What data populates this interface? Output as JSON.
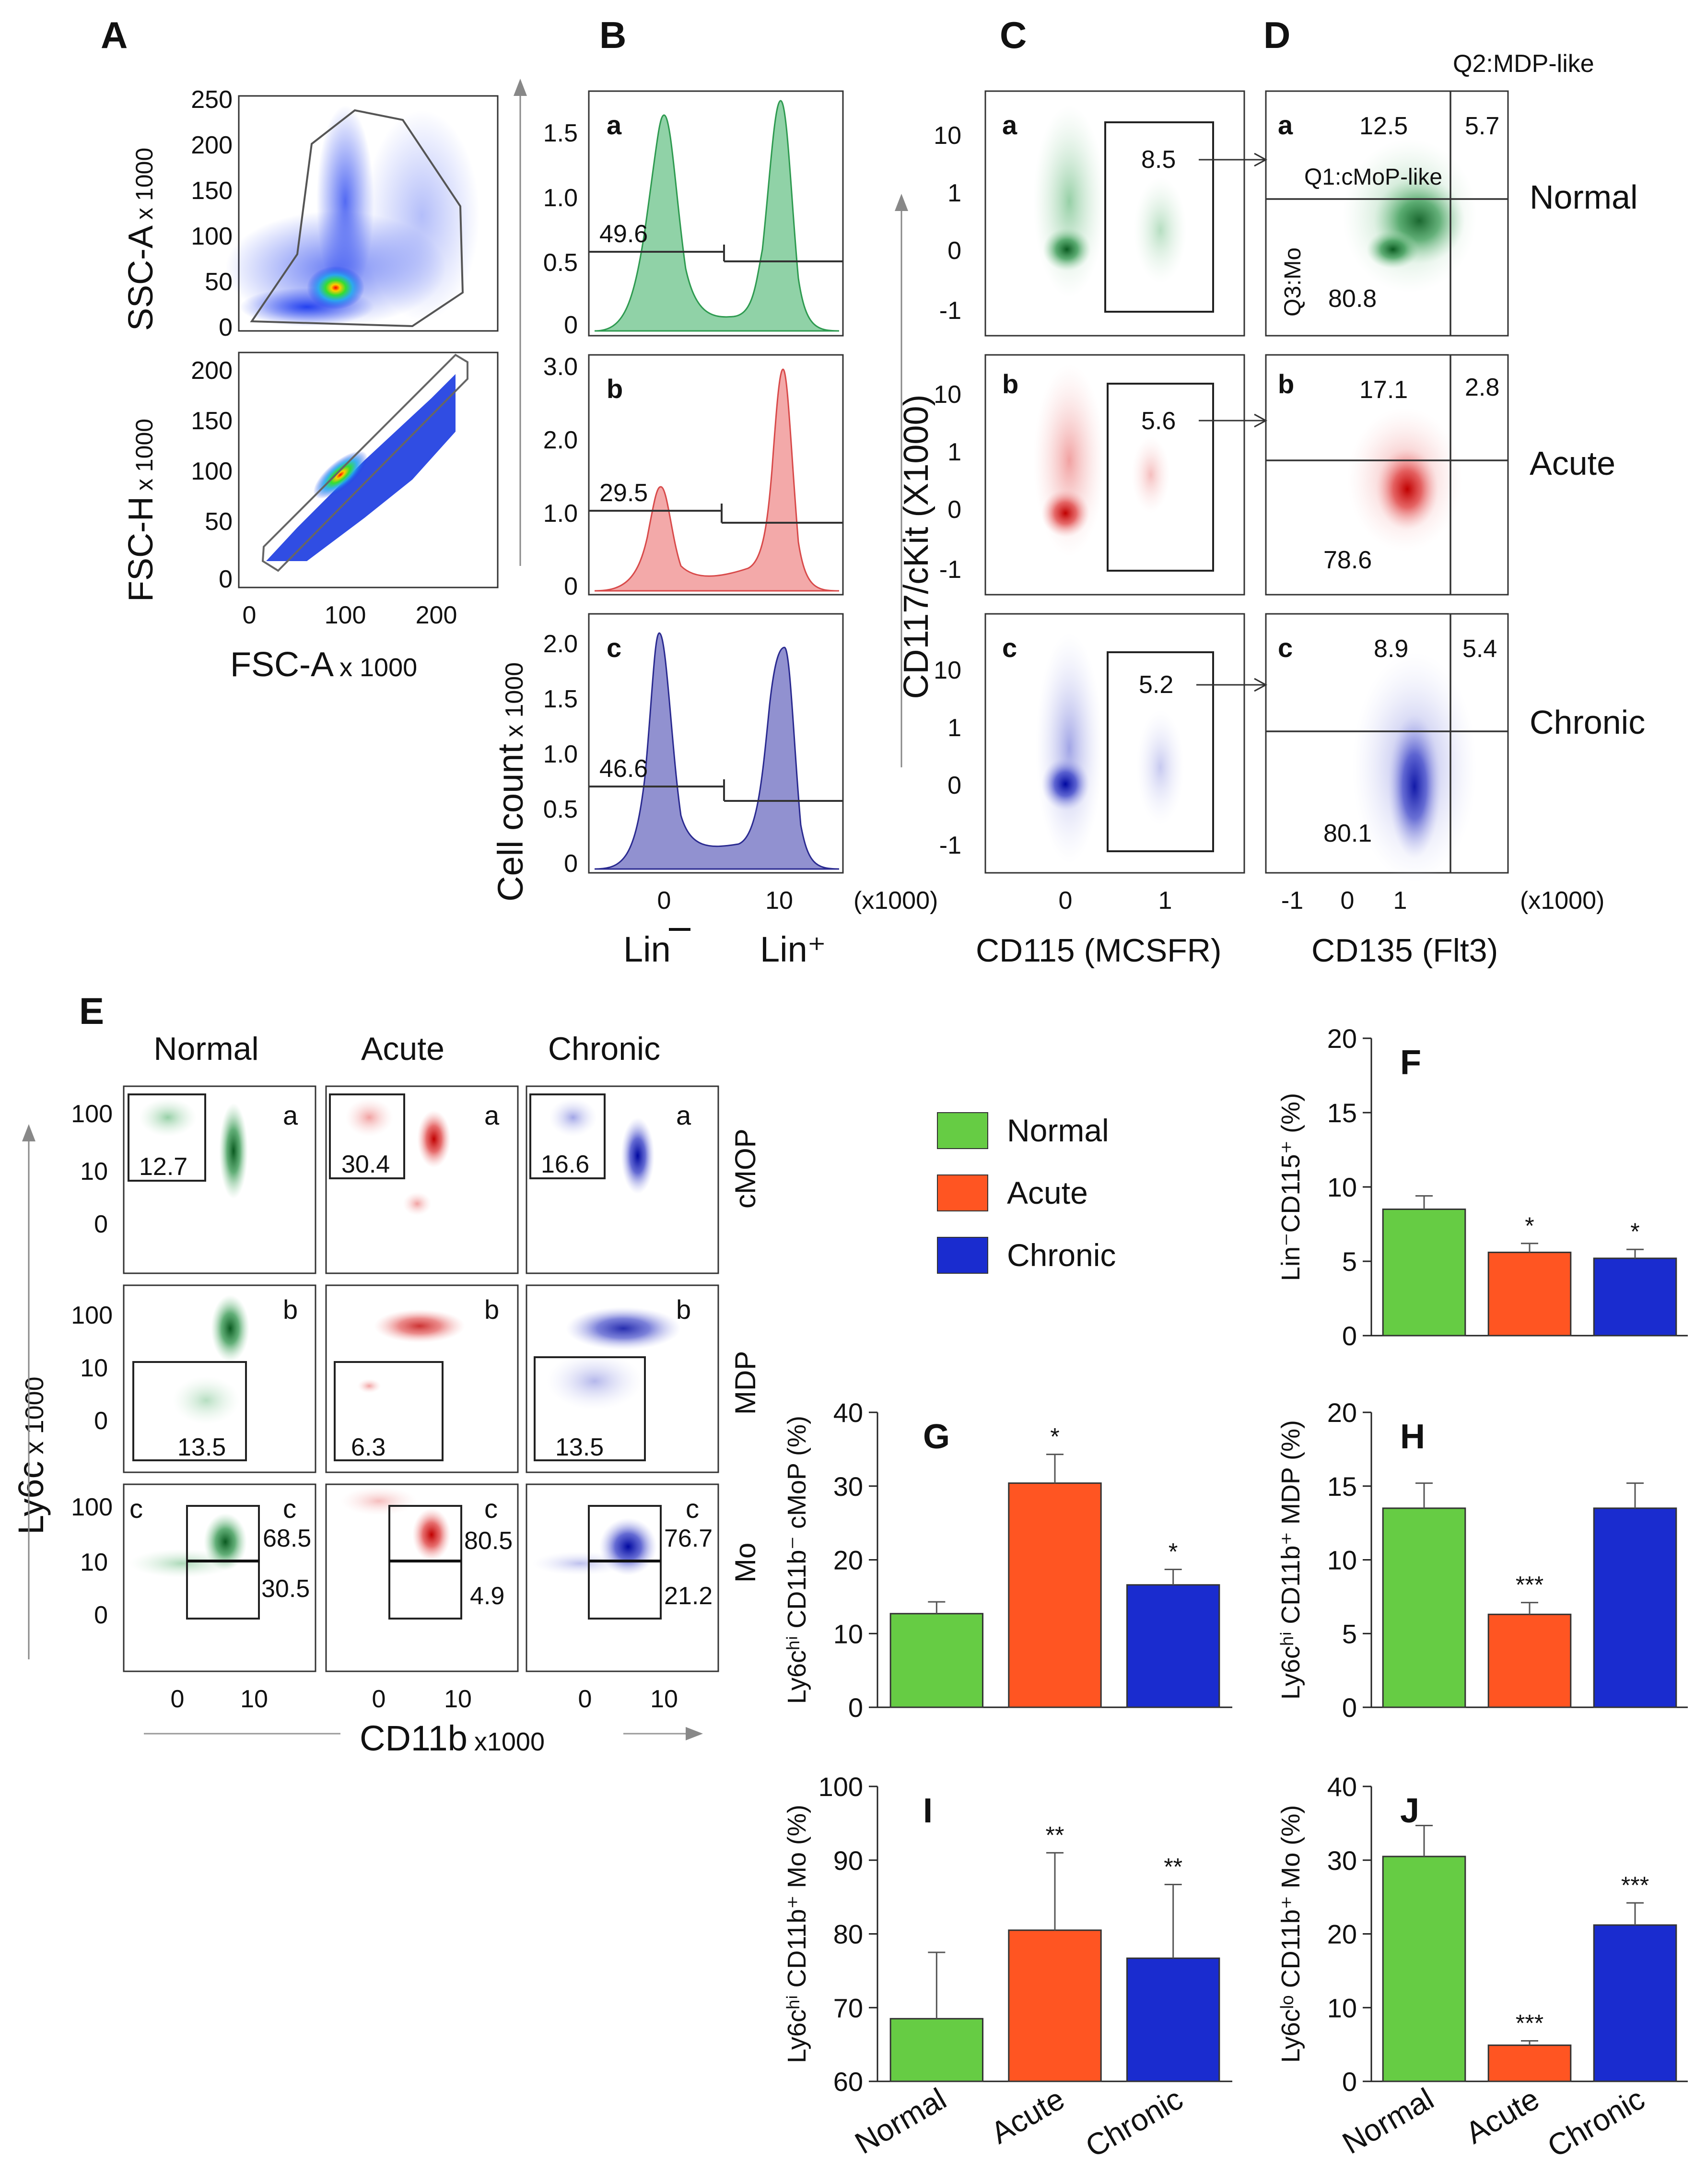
{
  "colors": {
    "normal": "#66cc44",
    "acute": "#ff5522",
    "chronic": "#1a2ccf",
    "normal_dark": "#1e7a32",
    "acute_dark": "#d81a1a",
    "chronic_dark": "#1020a8",
    "normal_hist": "#5fbf7a",
    "acute_hist": "#ef7a7a",
    "chronic_hist": "#7070c8"
  },
  "panel_letters": {
    "A": "A",
    "B": "B",
    "C": "C",
    "D": "D",
    "E": "E",
    "F": "F",
    "G": "G",
    "H": "H",
    "I": "I",
    "J": "J"
  },
  "panelA": {
    "top_y_ticks": [
      "250",
      "200",
      "150",
      "100",
      "50",
      "0"
    ],
    "bot_y_ticks": [
      "200",
      "150",
      "100",
      "50",
      "0"
    ],
    "x_ticks": [
      "0",
      "100",
      "200"
    ],
    "top_ylabel_main": "SSC-A",
    "top_ylabel_unit": "x 1000",
    "bot_ylabel_main": "FSC-H",
    "bot_ylabel_unit": "x 1000",
    "xlabel_main": "FSC-A",
    "xlabel_unit": "x 1000"
  },
  "panelB": {
    "rows": [
      {
        "sub": "a",
        "gate": "49.6",
        "ticks": [
          "1.5",
          "1.0",
          "0.5",
          "0"
        ]
      },
      {
        "sub": "b",
        "gate": "29.5",
        "ticks": [
          "3.0",
          "2.0",
          "1.0",
          "0"
        ]
      },
      {
        "sub": "c",
        "gate": "46.6",
        "ticks": [
          "2.0",
          "1.5",
          "1.0",
          "0.5",
          "0"
        ]
      }
    ],
    "x_ticks": [
      "0",
      "10"
    ],
    "x_unit": "(x1000)",
    "ylabel_main": "Cell count",
    "ylabel_unit": "x 1000",
    "lin_neg": "Lin",
    "lin_pos": "Lin⁺"
  },
  "panelC": {
    "rows": [
      {
        "sub": "a",
        "gate": "8.5",
        "ticks": [
          "10",
          "1",
          "0",
          "-1"
        ]
      },
      {
        "sub": "b",
        "gate": "5.6",
        "ticks": [
          "10",
          "1",
          "0",
          "-1"
        ]
      },
      {
        "sub": "c",
        "gate": "5.2",
        "ticks": [
          "10",
          "1",
          "0",
          "-1"
        ]
      }
    ],
    "x_ticks": [
      "0",
      "1"
    ],
    "xlabel": "CD115 (MCSFR)",
    "ylabel": "CD117/cKit (X1000)"
  },
  "panelD": {
    "header": "Q2:MDP-like",
    "q1": "Q1:cMoP-like",
    "q3": "Q3:Mo",
    "rows": [
      {
        "sub": "a",
        "tl": "12.5",
        "tr": "5.7",
        "bl": "80.8",
        "cond": "Normal"
      },
      {
        "sub": "b",
        "tl": "17.1",
        "tr": "2.8",
        "bl": "78.6",
        "cond": "Acute"
      },
      {
        "sub": "c",
        "tl": "8.9",
        "tr": "5.4",
        "bl": "80.1",
        "cond": "Chronic"
      }
    ],
    "x_ticks": [
      "-1",
      "0",
      "1"
    ],
    "x_unit": "(x1000)",
    "xlabel": "CD135 (Flt3)"
  },
  "panelE": {
    "col_heads": [
      "Normal",
      "Acute",
      "Chronic"
    ],
    "row_labels": [
      "cMOP",
      "MDP",
      "Mo"
    ],
    "subs": [
      "a",
      "b",
      "c"
    ],
    "y_ticks": [
      "100",
      "10",
      "0"
    ],
    "x_ticks": [
      "0",
      "10"
    ],
    "values": {
      "cmop": [
        "12.7",
        "30.4",
        "16.6"
      ],
      "mdp": [
        "13.5",
        "6.3",
        "13.5"
      ],
      "mo_hi": [
        "68.5",
        "80.5",
        "76.7"
      ],
      "mo_lo": [
        "30.5",
        "4.9",
        "21.2"
      ]
    },
    "ylabel_main": "Ly6c",
    "ylabel_unit": "x 1000",
    "xlabel_main": "CD11b",
    "xlabel_unit": "x1000"
  },
  "legend": [
    "Normal",
    "Acute",
    "Chronic"
  ],
  "chart_data": [
    {
      "id": "F",
      "type": "bar",
      "categories": [
        "Normal",
        "Acute",
        "Chronic"
      ],
      "values": [
        8.5,
        5.6,
        5.2
      ],
      "errors": [
        0.9,
        0.6,
        0.6
      ],
      "sig": [
        "",
        "*",
        "*"
      ],
      "ylim": [
        0,
        20
      ],
      "yticks": [
        "0",
        "5",
        "10",
        "15",
        "20"
      ],
      "ylabel": "Lin⁻CD115⁺ (%)",
      "show_x_labels": false
    },
    {
      "id": "G",
      "type": "bar",
      "categories": [
        "Normal",
        "Acute",
        "Chronic"
      ],
      "values": [
        12.7,
        30.4,
        16.6
      ],
      "errors": [
        1.6,
        3.9,
        2.1
      ],
      "sig": [
        "",
        "*",
        "*"
      ],
      "ylim": [
        0,
        40
      ],
      "yticks": [
        "0",
        "10",
        "20",
        "30",
        "40"
      ],
      "ylabel": "Ly6cʰⁱ CD11b⁻ cMoP (%)",
      "show_x_labels": false
    },
    {
      "id": "H",
      "type": "bar",
      "categories": [
        "Normal",
        "Acute",
        "Chronic"
      ],
      "values": [
        13.5,
        6.3,
        13.5
      ],
      "errors": [
        1.7,
        0.8,
        1.7
      ],
      "sig": [
        "",
        "***",
        ""
      ],
      "ylim": [
        0,
        20
      ],
      "yticks": [
        "0",
        "5",
        "10",
        "15",
        "20"
      ],
      "ylabel": "Ly6cʰⁱ CD11b⁺ MDP (%)",
      "show_x_labels": false
    },
    {
      "id": "I",
      "type": "bar",
      "categories": [
        "Normal",
        "Acute",
        "Chronic"
      ],
      "values": [
        68.5,
        80.5,
        76.7
      ],
      "errors": [
        9,
        10.5,
        10
      ],
      "sig": [
        "",
        "**",
        "**"
      ],
      "ylim": [
        60,
        100
      ],
      "yticks": [
        "60",
        "70",
        "80",
        "90",
        "100"
      ],
      "ylabel": "Ly6cʰⁱ CD11b⁺ Mo (%)",
      "show_x_labels": true
    },
    {
      "id": "J",
      "type": "bar",
      "categories": [
        "Normal",
        "Acute",
        "Chronic"
      ],
      "values": [
        30.5,
        4.9,
        21.2
      ],
      "errors": [
        4.2,
        0.6,
        3
      ],
      "sig": [
        "",
        "***",
        "***"
      ],
      "ylim": [
        0,
        40
      ],
      "yticks": [
        "0",
        "10",
        "20",
        "30",
        "40"
      ],
      "ylabel": "Ly6cˡᵒ CD11b⁺ Mo (%)",
      "show_x_labels": true
    }
  ]
}
